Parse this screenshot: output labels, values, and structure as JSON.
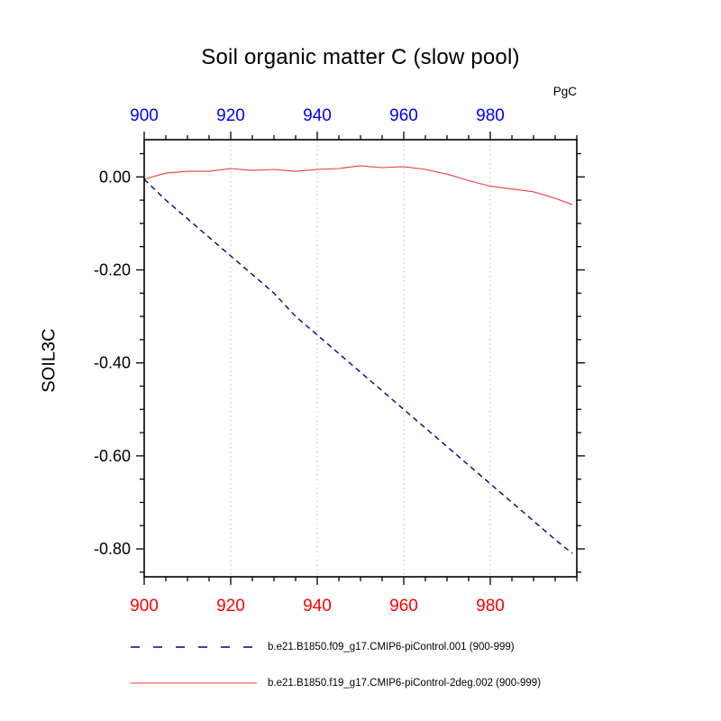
{
  "chart_data": {
    "type": "line",
    "title": "Soil organic matter C (slow pool)",
    "ylabel": "SOIL3C",
    "units": "PgC",
    "xlim": [
      900,
      1000
    ],
    "ylim": [
      -0.86,
      0.08
    ],
    "x_major_ticks": [
      900,
      920,
      940,
      960,
      980
    ],
    "x_minor_step": 5,
    "y_major_ticks": [
      0,
      -0.2,
      -0.4,
      -0.6,
      -0.8
    ],
    "y_minor_step": 0.05,
    "x_gridlines": [
      920,
      940,
      960,
      980
    ],
    "grid_on": true,
    "grid_color": "#bdbdbd",
    "axis_color": "#000000",
    "top_axis_label_color": "#0000ff",
    "bottom_axis_label_color": "#ff0000",
    "legend_position": "bottom",
    "series": [
      {
        "name": "b.e21.B1850.f09_g17.CMIP6-piControl.001 (900-999)",
        "color": "#00008b",
        "style": "dashed",
        "x": [
          900,
          905,
          910,
          915,
          920,
          925,
          930,
          935,
          940,
          945,
          950,
          955,
          960,
          965,
          970,
          975,
          980,
          985,
          990,
          995,
          999
        ],
        "values": [
          -0.005,
          -0.05,
          -0.09,
          -0.13,
          -0.17,
          -0.21,
          -0.25,
          -0.3,
          -0.34,
          -0.38,
          -0.42,
          -0.46,
          -0.5,
          -0.54,
          -0.58,
          -0.62,
          -0.66,
          -0.7,
          -0.74,
          -0.78,
          -0.81
        ]
      },
      {
        "name": "b.e21.B1850.f19_g17.CMIP6-piControl-2deg.002 (900-999)",
        "color": "#ee3b3b",
        "style": "solid",
        "x": [
          900,
          905,
          910,
          915,
          920,
          925,
          930,
          935,
          940,
          945,
          950,
          955,
          960,
          965,
          970,
          975,
          980,
          985,
          990,
          995,
          999
        ],
        "values": [
          -0.005,
          0.008,
          0.012,
          0.012,
          0.018,
          0.014,
          0.016,
          0.012,
          0.016,
          0.018,
          0.024,
          0.02,
          0.022,
          0.016,
          0.006,
          -0.008,
          -0.02,
          -0.026,
          -0.032,
          -0.046,
          -0.06
        ]
      }
    ]
  }
}
